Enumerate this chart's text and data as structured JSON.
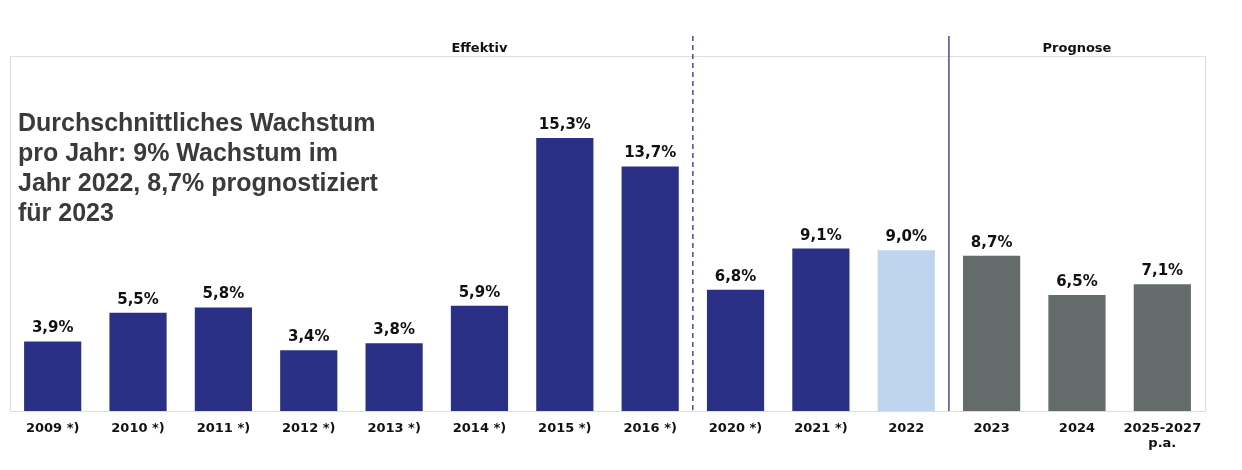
{
  "chart_data": {
    "type": "bar",
    "title": "Durchschnittliches Wachstum\npro Jahr: 9% Wachstum im\nJahr 2022, 8,7% prognostiziert\nfür 2023",
    "categories": [
      "2009 *)",
      "2010 *)",
      "2011 *)",
      "2012 *)",
      "2013 *)",
      "2014 *)",
      "2015 *)",
      "2016 *)",
      "2020 *)",
      "2021 *)",
      "2022",
      "2023",
      "2024",
      "2025-2027\np.a."
    ],
    "values": [
      3.9,
      5.5,
      5.8,
      3.4,
      3.8,
      5.9,
      15.3,
      13.7,
      6.8,
      9.1,
      9.0,
      8.7,
      6.5,
      7.1
    ],
    "value_labels": [
      "3,9%",
      "5,5%",
      "5,8%",
      "3,4%",
      "3,8%",
      "5,9%",
      "15,3%",
      "13,7%",
      "6,8%",
      "9,1%",
      "9,0%",
      "8,7%",
      "6,5%",
      "7,1%"
    ],
    "colors": [
      "#2b3087",
      "#2b3087",
      "#2b3087",
      "#2b3087",
      "#2b3087",
      "#2b3087",
      "#2b3087",
      "#2b3087",
      "#2b3087",
      "#2b3087",
      "#bfd4ee",
      "#636b6b",
      "#636b6b",
      "#636b6b"
    ],
    "ref_lines": [
      {
        "axis": "x",
        "value": "2020 *)",
        "label": null,
        "color": "#2b3087",
        "line_style": "dashed"
      },
      {
        "axis": "x",
        "value": "2023",
        "label": null,
        "color": "#2b3087",
        "line_style": "solid"
      }
    ],
    "annotations": [
      "Effektiv",
      "Prognose"
    ],
    "grid": false
  }
}
